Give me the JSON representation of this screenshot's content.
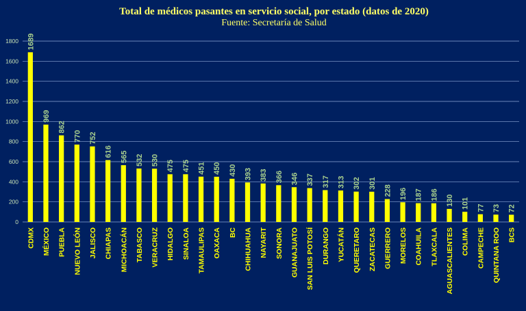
{
  "chart_data": {
    "type": "bar",
    "title": "Total de médicos pasantes en servicio social, por estado (datos de 2020)",
    "subtitle": "Fuente: Secretaría de Salud",
    "xlabel": "",
    "ylabel": "",
    "ylim": [
      0,
      1800
    ],
    "yticks": [
      0,
      200,
      400,
      600,
      800,
      1000,
      1200,
      1400,
      1600,
      1800
    ],
    "grid": true,
    "legend": "none",
    "categories": [
      "CDMX",
      "MÉXICO",
      "PUEBLA",
      "NUEVO LEÓN",
      "JALISCO",
      "CHIAPAS",
      "MICHOACÁN",
      "TABASCO",
      "VERACRUZ",
      "HIDALGO",
      "SINALOA",
      "TAMAULIPAS",
      "OAXACA",
      "BC",
      "CHIHUAHUA",
      "NAYARIT",
      "SONORA",
      "GUANAJUATO",
      "SAN LUIS POTOSÍ",
      "DURANGO",
      "YUCATÁN",
      "QUERETARO",
      "ZACATECAS",
      "GUERRERO",
      "MORELOS",
      "COAHUILA",
      "TLAXCALA",
      "AGUASCALIENTES",
      "COLIMA",
      "CAMPECHE",
      "QUINTANA ROO",
      "BCS"
    ],
    "values": [
      1689,
      969,
      862,
      770,
      752,
      616,
      565,
      532,
      530,
      475,
      475,
      451,
      450,
      430,
      393,
      383,
      366,
      346,
      337,
      317,
      313,
      302,
      301,
      228,
      196,
      187,
      186,
      130,
      101,
      77,
      73,
      72
    ]
  },
  "colors": {
    "background": "#002060",
    "bar": "#FFFF00",
    "title": "#FFFF66",
    "subtitle": "#FFFF66",
    "grid": "#8FA8D8",
    "tick_text": "#C6E0B4",
    "data_label": "#A9D08E",
    "category_text": "#FFFF00"
  }
}
